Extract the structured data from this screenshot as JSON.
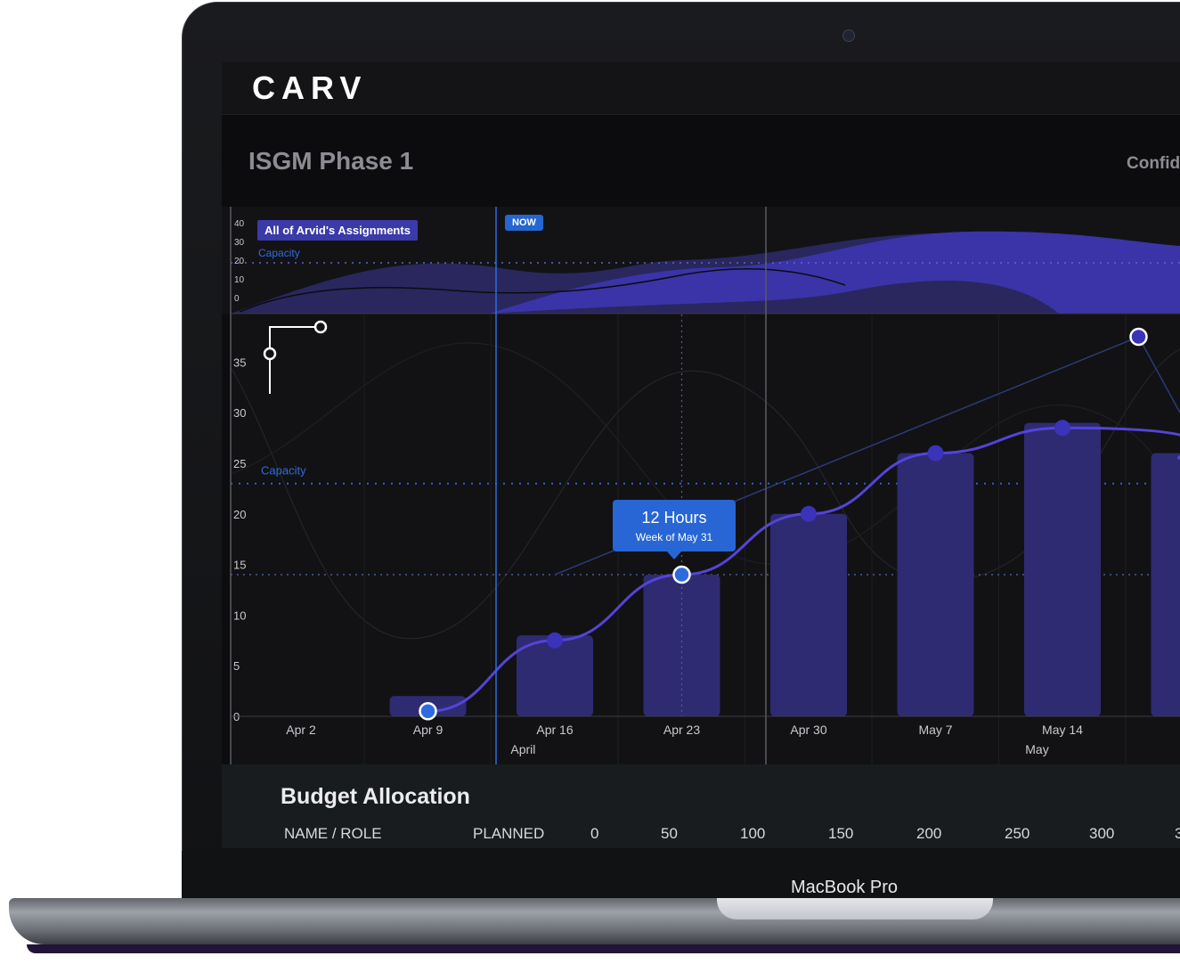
{
  "app": {
    "logo": "CARV",
    "page_title": "ISGM Phase 1",
    "header_right": "Confid"
  },
  "overview": {
    "tag": "All of Arvid's Assignments",
    "capacity_label": "Capacity",
    "y_ticks": [
      "40",
      "30",
      "20",
      "10",
      "0"
    ],
    "now_label": "NOW"
  },
  "tooltip": {
    "value": "12 Hours",
    "subtitle": "Week of May 31"
  },
  "chart_data": {
    "type": "bar",
    "title": "",
    "categories": [
      "Apr 2",
      "Apr 9",
      "Apr 16",
      "Apr 23",
      "Apr 30",
      "May 7",
      "May 14",
      "M"
    ],
    "series": [
      {
        "values": [
          null,
          2,
          8,
          14,
          20,
          26,
          29,
          26
        ]
      }
    ],
    "trend_points": [
      null,
      0.5,
      7.5,
      14,
      20,
      26,
      28.5,
      null
    ],
    "highlight_point": {
      "category": "Apr 23",
      "value": 14
    },
    "scatter_point": {
      "x_offset": 6.6,
      "value": 37.5
    },
    "months": [
      {
        "label": "April",
        "at": 1.75
      },
      {
        "label": "May",
        "at": 5.8
      }
    ],
    "y_ticks": [
      "35",
      "30",
      "25",
      "20",
      "15",
      "10",
      "5",
      "0"
    ],
    "ylim": [
      -1.5,
      39
    ],
    "capacity_label": "Capacity",
    "capacity_value": 23,
    "reference_value": 14,
    "colors": {
      "bar": "#2e2b73",
      "line": "#5444d8",
      "point": "#3b33b8",
      "highlight": "#2e6bdf",
      "area": "#3a34a8"
    }
  },
  "budget": {
    "title": "Budget Allocation",
    "columns": [
      "NAME / ROLE",
      "PLANNED",
      "0",
      "50",
      "100",
      "150",
      "200",
      "250",
      "300",
      "3"
    ]
  },
  "device": {
    "model": "MacBook Pro"
  }
}
